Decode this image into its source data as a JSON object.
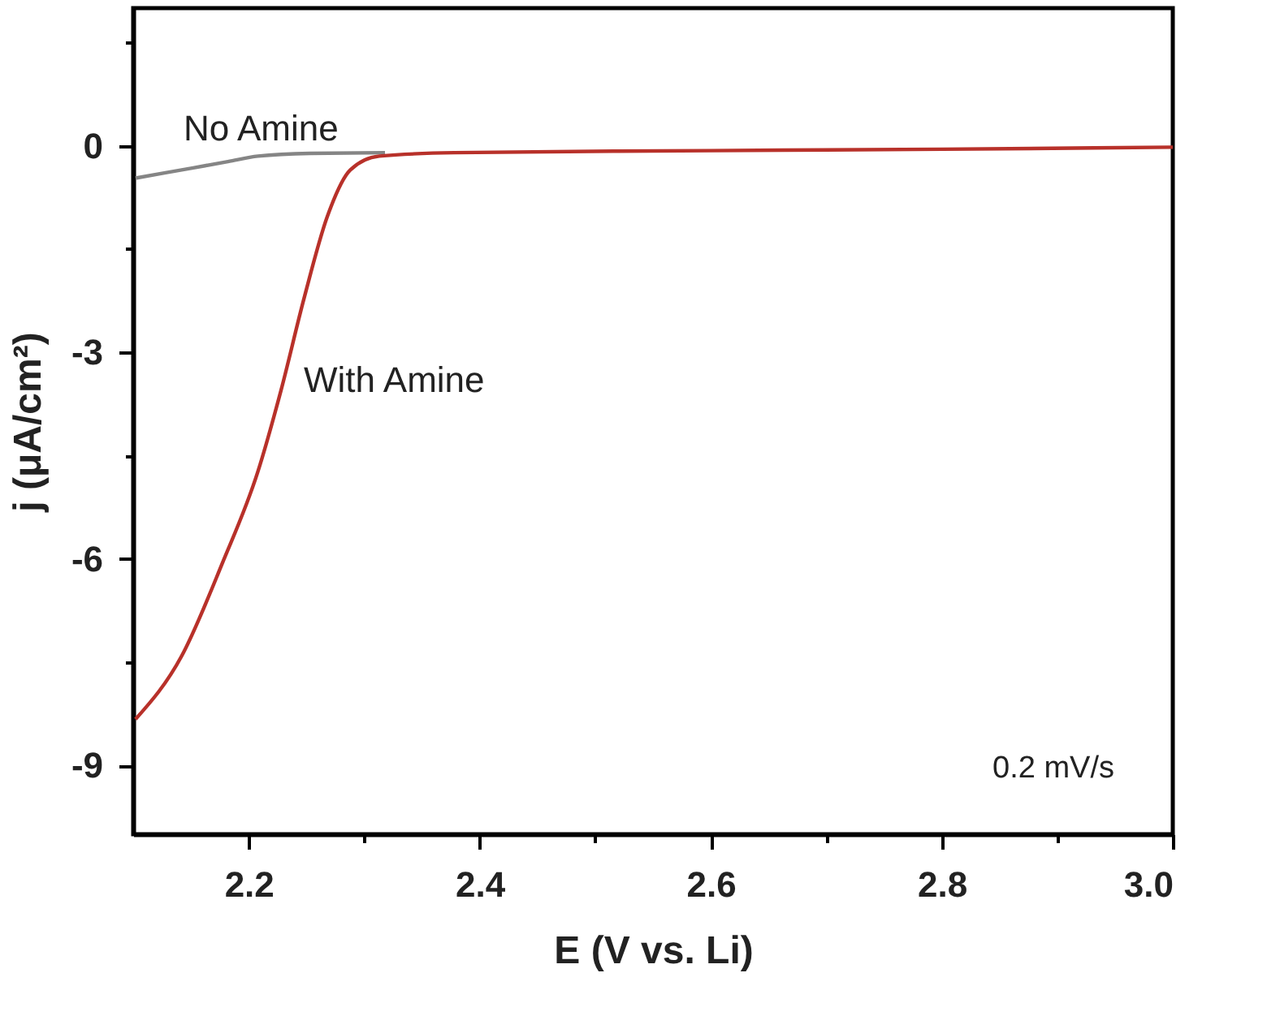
{
  "chart_data": {
    "type": "line",
    "xlabel": "E (V vs. Li)",
    "ylabel": "j (μA/cm²)",
    "xlim": [
      2.1,
      3.0
    ],
    "ylim": [
      -10,
      2
    ],
    "xticks": [
      2.2,
      {
        "value": 2.3,
        "label": null
      },
      2.4,
      {
        "value": 2.5,
        "label": null
      },
      2.6,
      {
        "value": 2.7,
        "label": null
      },
      2.8,
      {
        "value": 2.9,
        "label": null
      },
      {
        "value": 3.0,
        "label": "3.0"
      }
    ],
    "yticks": [
      -9,
      {
        "value": -7.5,
        "label": null
      },
      -6,
      {
        "value": -4.5,
        "label": null
      },
      -3,
      {
        "value": -1.5,
        "label": null
      },
      0,
      {
        "value": 1.5,
        "label": null
      }
    ],
    "grid": false,
    "marker": "none",
    "line_style": "solid",
    "legend": false,
    "annotations": [
      "0.2 mV/s"
    ],
    "series": [
      {
        "name": "No Amine",
        "color": "#858585",
        "x": [
          2.102,
          2.152,
          2.182,
          2.208,
          2.253,
          2.318
        ],
        "values": [
          -0.47,
          -0.32,
          -0.23,
          -0.15,
          -0.11,
          -0.1
        ]
      },
      {
        "name": "With Amine",
        "color": "#b8312a",
        "x": [
          2.102,
          2.142,
          2.177,
          2.208,
          2.228,
          2.248,
          2.268,
          2.288,
          2.313,
          2.378,
          2.6,
          2.8,
          3.0
        ],
        "values": [
          -8.33,
          -7.41,
          -6.07,
          -4.73,
          -3.55,
          -2.21,
          -1.03,
          -0.35,
          -0.15,
          -0.1,
          -0.07,
          -0.05,
          -0.02
        ]
      }
    ]
  }
}
